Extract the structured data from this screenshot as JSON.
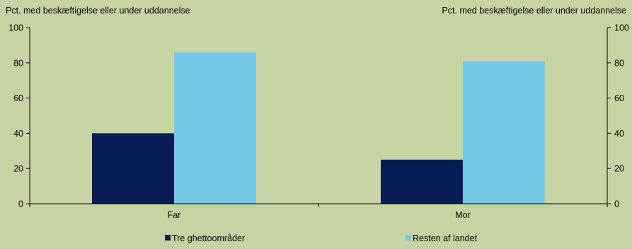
{
  "chart_data": {
    "type": "bar",
    "ylabel_left": "Pct. med beskæftigelse eller under uddannelse",
    "ylabel_right": "Pct. med beskæftigelse eller under uddannelse",
    "categories": [
      "Far",
      "Mor"
    ],
    "series": [
      {
        "name": "Tre ghettoområder",
        "values": [
          40,
          25
        ],
        "color": "#071c55"
      },
      {
        "name": "Resten af landet",
        "values": [
          86,
          81
        ],
        "color": "#76c8e8"
      }
    ],
    "ylim": [
      0,
      100
    ],
    "yticks": [
      0,
      20,
      40,
      60,
      80,
      100
    ],
    "grid": false,
    "legend_position": "bottom"
  }
}
